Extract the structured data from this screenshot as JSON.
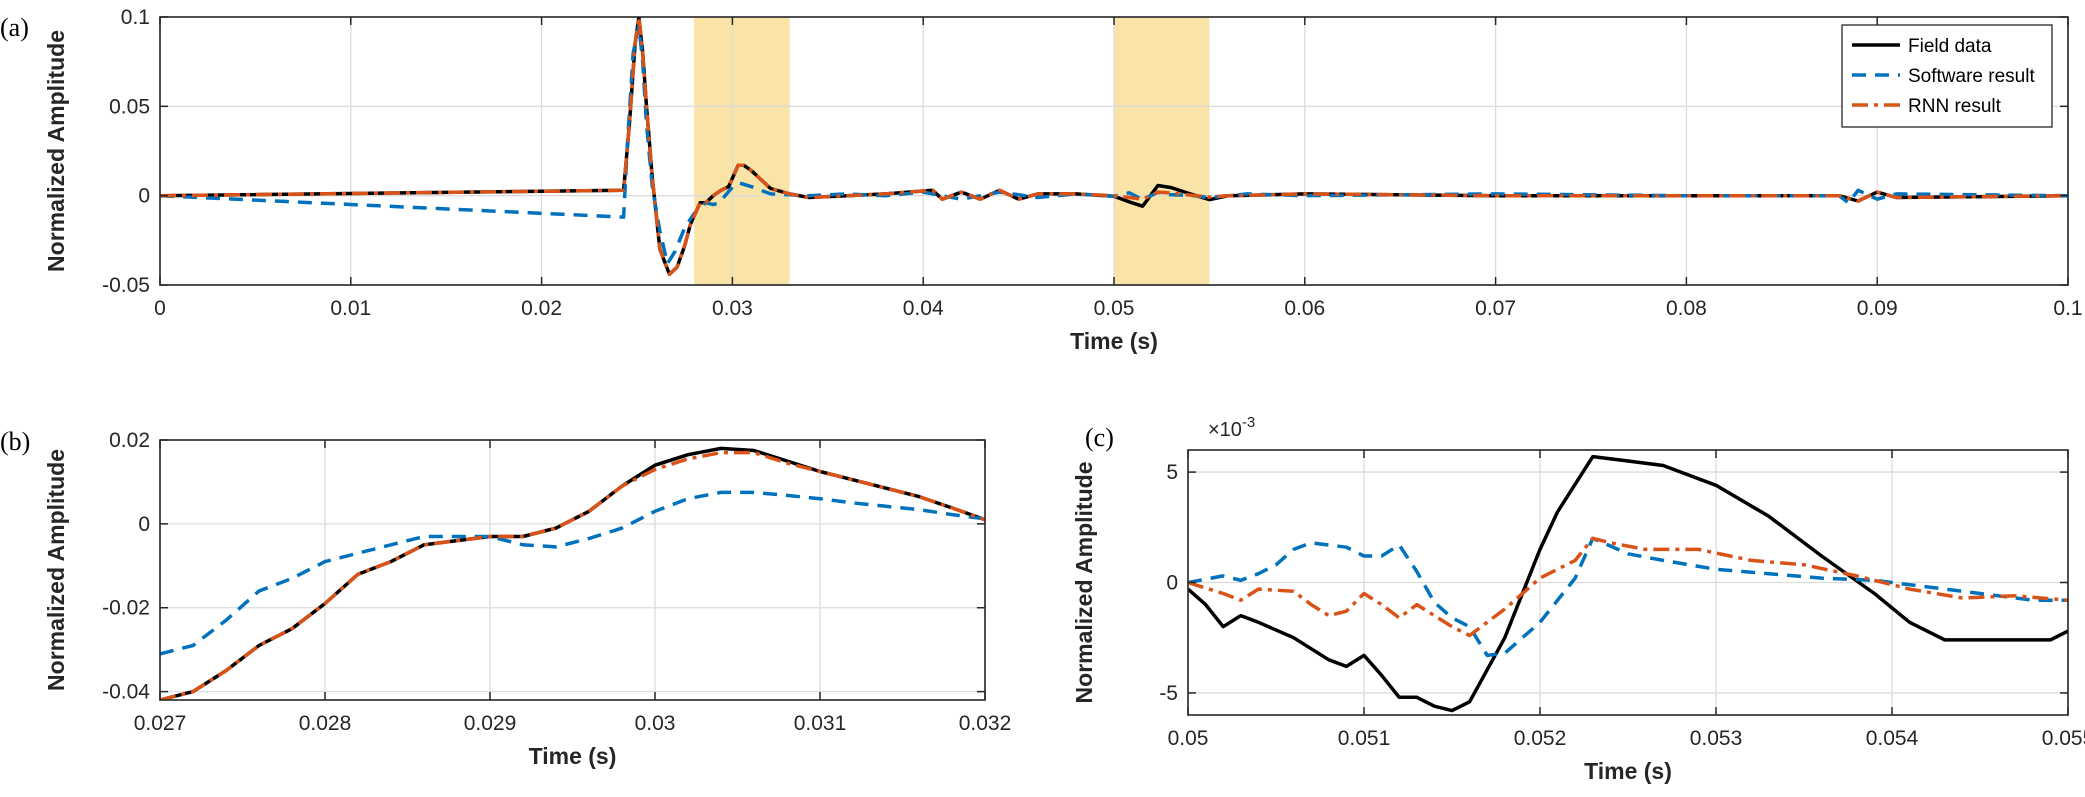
{
  "colors": {
    "field": "#000000",
    "software": "#0072bd",
    "rnn": "#d95319",
    "highlight": "#f9e3a6",
    "grid": "#dcdcdc",
    "axis": "#262626"
  },
  "chart_data": [
    {
      "type": "line",
      "panel": "(a)",
      "xlabel": "Time (s)",
      "ylabel": "Normalized Amplitude",
      "xlim": [
        0,
        0.1
      ],
      "ylim": [
        -0.05,
        0.1
      ],
      "x_ticks": [
        0,
        0.01,
        0.02,
        0.03,
        0.04,
        0.05,
        0.06,
        0.07,
        0.08,
        0.09,
        0.1
      ],
      "x_tick_labels": [
        "0",
        "0.01",
        "0.02",
        "0.03",
        "0.04",
        "0.05",
        "0.06",
        "0.07",
        "0.08",
        "0.09",
        "0.1"
      ],
      "y_ticks": [
        -0.05,
        0,
        0.05,
        0.1
      ],
      "y_tick_labels": [
        "-0.05",
        "0",
        "0.05",
        "0.1"
      ],
      "grid": true,
      "legend": {
        "position": "top-right",
        "entries": [
          "Field data",
          "Software result",
          "RNN result"
        ]
      },
      "highlight_ranges": [
        [
          0.028,
          0.033
        ],
        [
          0.05,
          0.055
        ]
      ],
      "series": [
        {
          "name": "Field data",
          "style": "solid",
          "x": [
            0,
            0.0243,
            0.0246,
            0.0249,
            0.0251,
            0.0253,
            0.0255,
            0.0258,
            0.0262,
            0.0267,
            0.0271,
            0.0275,
            0.0278,
            0.0283,
            0.0286,
            0.029,
            0.0294,
            0.0298,
            0.0303,
            0.0306,
            0.031,
            0.0315,
            0.032,
            0.033,
            0.034,
            0.036,
            0.038,
            0.0405,
            0.041,
            0.042,
            0.043,
            0.044,
            0.045,
            0.046,
            0.048,
            0.05,
            0.0508,
            0.0515,
            0.0523,
            0.053,
            0.054,
            0.055,
            0.056,
            0.06,
            0.07,
            0.08,
            0.088,
            0.089,
            0.09,
            0.091,
            0.1
          ],
          "y": [
            0,
            0.003,
            0.04,
            0.085,
            0.1,
            0.08,
            0.05,
            0.01,
            -0.03,
            -0.044,
            -0.04,
            -0.028,
            -0.016,
            -0.004,
            -0.004,
            0,
            0.003,
            0.005,
            0.017,
            0.017,
            0.014,
            0.009,
            0.004,
            0.001,
            -0.001,
            0,
            0.001,
            0.003,
            -0.002,
            0.002,
            -0.002,
            0.003,
            -0.002,
            0.001,
            0.001,
            -0.0003,
            -0.0035,
            -0.0059,
            0.0057,
            0.0045,
            0.001,
            -0.0022,
            0,
            0.001,
            0,
            0,
            0,
            -0.003,
            0.002,
            -0.001,
            0
          ]
        },
        {
          "name": "Software result",
          "style": "dashed",
          "x": [
            0,
            0.0243,
            0.0245,
            0.0248,
            0.0251,
            0.0253,
            0.0255,
            0.0258,
            0.0262,
            0.0266,
            0.027,
            0.0275,
            0.028,
            0.0286,
            0.029,
            0.0293,
            0.0297,
            0.0301,
            0.0304,
            0.031,
            0.032,
            0.034,
            0.036,
            0.038,
            0.04,
            0.042,
            0.044,
            0.046,
            0.048,
            0.05,
            0.0508,
            0.0515,
            0.0523,
            0.053,
            0.054,
            0.055,
            0.057,
            0.06,
            0.07,
            0.08,
            0.088,
            0.0885,
            0.089,
            0.09,
            0.091,
            0.1
          ],
          "y": [
            0,
            -0.012,
            0.03,
            0.08,
            0.095,
            0.075,
            0.04,
            0.005,
            -0.02,
            -0.038,
            -0.031,
            -0.018,
            -0.01,
            -0.004,
            -0.005,
            -0.004,
            0.001,
            0.006,
            0.007,
            0.005,
            0.001,
            0,
            0.001,
            0,
            0.002,
            -0.002,
            0.002,
            -0.001,
            0.001,
            -0.0003,
            0.0016,
            -0.0022,
            0.0019,
            0.0005,
            0.0002,
            -0.001,
            0.001,
            0,
            0.001,
            0,
            0,
            -0.004,
            0.003,
            -0.002,
            0.001,
            0
          ]
        },
        {
          "name": "RNN result",
          "style": "dashdot",
          "x": [
            0,
            0.0243,
            0.0246,
            0.0249,
            0.0251,
            0.0253,
            0.0255,
            0.0258,
            0.0262,
            0.0267,
            0.0271,
            0.0275,
            0.0278,
            0.0283,
            0.0286,
            0.029,
            0.0294,
            0.0298,
            0.0303,
            0.0306,
            0.031,
            0.0315,
            0.032,
            0.033,
            0.034,
            0.036,
            0.038,
            0.0405,
            0.041,
            0.042,
            0.043,
            0.044,
            0.045,
            0.046,
            0.048,
            0.05,
            0.0508,
            0.0515,
            0.0523,
            0.053,
            0.054,
            0.055,
            0.056,
            0.06,
            0.07,
            0.08,
            0.088,
            0.089,
            0.09,
            0.091,
            0.1
          ],
          "y": [
            0,
            0.003,
            0.04,
            0.085,
            0.1,
            0.08,
            0.05,
            0.01,
            -0.03,
            -0.044,
            -0.04,
            -0.028,
            -0.016,
            -0.004,
            -0.004,
            0,
            0.003,
            0.005,
            0.017,
            0.017,
            0.014,
            0.009,
            0.004,
            0.001,
            -0.001,
            0,
            0.001,
            0.003,
            -0.002,
            0.002,
            -0.002,
            0.003,
            -0.002,
            0.001,
            0.001,
            0,
            -0.001,
            -0.002,
            0.002,
            0.0015,
            0.0003,
            -0.0008,
            0,
            0.001,
            0,
            0,
            0,
            -0.003,
            0.002,
            -0.001,
            0
          ]
        }
      ]
    },
    {
      "type": "line",
      "panel": "(b)",
      "xlabel": "Time (s)",
      "ylabel": "Normalized Amplitude",
      "xlim": [
        0.027,
        0.032
      ],
      "ylim": [
        -0.042,
        0.02
      ],
      "x_ticks": [
        0.027,
        0.028,
        0.029,
        0.03,
        0.031,
        0.032
      ],
      "x_tick_labels": [
        "0.027",
        "0.028",
        "0.029",
        "0.03",
        "0.031",
        "0.032"
      ],
      "y_ticks": [
        -0.04,
        -0.02,
        0,
        0.02
      ],
      "y_tick_labels": [
        "-0.04",
        "-0.02",
        "0",
        "0.02"
      ],
      "grid": true,
      "series": [
        {
          "name": "Field data",
          "style": "solid",
          "x": [
            0.027,
            0.0272,
            0.0274,
            0.0276,
            0.0278,
            0.028,
            0.0282,
            0.0284,
            0.0286,
            0.0288,
            0.029,
            0.0292,
            0.0294,
            0.0296,
            0.0298,
            0.03,
            0.0302,
            0.0304,
            0.0306,
            0.0308,
            0.031,
            0.0312,
            0.0314,
            0.0316,
            0.0318,
            0.032
          ],
          "y": [
            -0.042,
            -0.04,
            -0.035,
            -0.029,
            -0.025,
            -0.019,
            -0.012,
            -0.009,
            -0.005,
            -0.004,
            -0.003,
            -0.003,
            -0.001,
            0.003,
            0.009,
            0.014,
            0.0165,
            0.018,
            0.0175,
            0.015,
            0.0125,
            0.0105,
            0.0085,
            0.0065,
            0.0038,
            0.001
          ]
        },
        {
          "name": "Software result",
          "style": "dashed",
          "x": [
            0.027,
            0.0272,
            0.0274,
            0.0276,
            0.0278,
            0.028,
            0.0282,
            0.0284,
            0.0286,
            0.0288,
            0.029,
            0.0292,
            0.0294,
            0.0296,
            0.0298,
            0.03,
            0.0302,
            0.0304,
            0.0306,
            0.0308,
            0.031,
            0.0312,
            0.0314,
            0.0316,
            0.0318,
            0.032
          ],
          "y": [
            -0.031,
            -0.029,
            -0.023,
            -0.016,
            -0.013,
            -0.009,
            -0.007,
            -0.005,
            -0.003,
            -0.003,
            -0.003,
            -0.005,
            -0.0055,
            -0.0035,
            -0.001,
            0.003,
            0.006,
            0.0075,
            0.0075,
            0.0068,
            0.006,
            0.005,
            0.0042,
            0.0034,
            0.0022,
            0.0012
          ]
        },
        {
          "name": "RNN result",
          "style": "dashdot",
          "x": [
            0.027,
            0.0272,
            0.0274,
            0.0276,
            0.0278,
            0.028,
            0.0282,
            0.0284,
            0.0286,
            0.0288,
            0.029,
            0.0292,
            0.0294,
            0.0296,
            0.0298,
            0.03,
            0.0302,
            0.0304,
            0.0306,
            0.0308,
            0.031,
            0.0312,
            0.0314,
            0.0316,
            0.0318,
            0.032
          ],
          "y": [
            -0.042,
            -0.04,
            -0.035,
            -0.029,
            -0.025,
            -0.019,
            -0.012,
            -0.009,
            -0.005,
            -0.004,
            -0.003,
            -0.003,
            -0.001,
            0.003,
            0.009,
            0.013,
            0.0155,
            0.017,
            0.017,
            0.0145,
            0.0125,
            0.0105,
            0.0085,
            0.0065,
            0.0038,
            0.001
          ]
        }
      ]
    },
    {
      "type": "line",
      "panel": "(c)",
      "xlabel": "Time (s)",
      "ylabel": "Normalized Amplitude",
      "y_exponent_label": "×10",
      "y_exponent": "-3",
      "xlim": [
        0.05,
        0.055
      ],
      "ylim": [
        -6,
        6
      ],
      "x_ticks": [
        0.05,
        0.051,
        0.052,
        0.053,
        0.054,
        0.055
      ],
      "x_tick_labels": [
        "0.05",
        "0.051",
        "0.052",
        "0.053",
        "0.054",
        "0.055"
      ],
      "y_ticks": [
        -5,
        0,
        5
      ],
      "y_tick_labels": [
        "-5",
        "0",
        "5"
      ],
      "grid": true,
      "series": [
        {
          "name": "Field data",
          "style": "solid",
          "x": [
            0.05,
            0.0501,
            0.0502,
            0.0503,
            0.0504,
            0.0506,
            0.0508,
            0.0509,
            0.051,
            0.0511,
            0.0512,
            0.0513,
            0.0514,
            0.0515,
            0.0516,
            0.0518,
            0.052,
            0.0521,
            0.0523,
            0.0525,
            0.0527,
            0.053,
            0.0533,
            0.0536,
            0.0539,
            0.0541,
            0.0543,
            0.0545,
            0.0547,
            0.0549,
            0.055
          ],
          "y": [
            -0.3,
            -1.0,
            -2.0,
            -1.5,
            -1.8,
            -2.5,
            -3.5,
            -3.8,
            -3.3,
            -4.2,
            -5.2,
            -5.2,
            -5.6,
            -5.8,
            -5.4,
            -2.5,
            1.5,
            3.2,
            5.7,
            5.5,
            5.3,
            4.4,
            3.0,
            1.2,
            -0.5,
            -1.8,
            -2.6,
            -2.6,
            -2.6,
            -2.6,
            -2.2
          ]
        },
        {
          "name": "Software result",
          "style": "dashed",
          "x": [
            0.05,
            0.0502,
            0.0503,
            0.0504,
            0.0505,
            0.0506,
            0.0507,
            0.0508,
            0.0509,
            0.051,
            0.0511,
            0.0512,
            0.0513,
            0.0514,
            0.0515,
            0.0516,
            0.0517,
            0.0518,
            0.052,
            0.0522,
            0.0523,
            0.0525,
            0.0527,
            0.053,
            0.0533,
            0.0536,
            0.0539,
            0.0542,
            0.0545,
            0.0548,
            0.055
          ],
          "y": [
            0,
            0.3,
            0.1,
            0.4,
            0.8,
            1.5,
            1.8,
            1.7,
            1.6,
            1.2,
            1.2,
            1.7,
            0.5,
            -0.9,
            -1.6,
            -2.0,
            -3.3,
            -3.2,
            -1.8,
            0.2,
            2.0,
            1.3,
            1.0,
            0.6,
            0.4,
            0.2,
            0.1,
            -0.2,
            -0.5,
            -0.8,
            -0.8
          ]
        },
        {
          "name": "RNN result",
          "style": "dashdot",
          "x": [
            0.05,
            0.0502,
            0.0503,
            0.0504,
            0.0506,
            0.0507,
            0.0508,
            0.0509,
            0.051,
            0.0511,
            0.0512,
            0.0513,
            0.0514,
            0.0515,
            0.0516,
            0.0518,
            0.052,
            0.0522,
            0.0523,
            0.0524,
            0.0526,
            0.0529,
            0.0532,
            0.0535,
            0.0538,
            0.0541,
            0.0544,
            0.0547,
            0.055
          ],
          "y": [
            0,
            -0.5,
            -0.8,
            -0.3,
            -0.4,
            -1.0,
            -1.5,
            -1.3,
            -0.5,
            -1.0,
            -1.6,
            -1.0,
            -1.5,
            -2.0,
            -2.4,
            -1.2,
            0.2,
            1.0,
            2.0,
            1.8,
            1.5,
            1.5,
            1.0,
            0.8,
            0.3,
            -0.3,
            -0.7,
            -0.6,
            -0.8
          ]
        }
      ]
    }
  ]
}
